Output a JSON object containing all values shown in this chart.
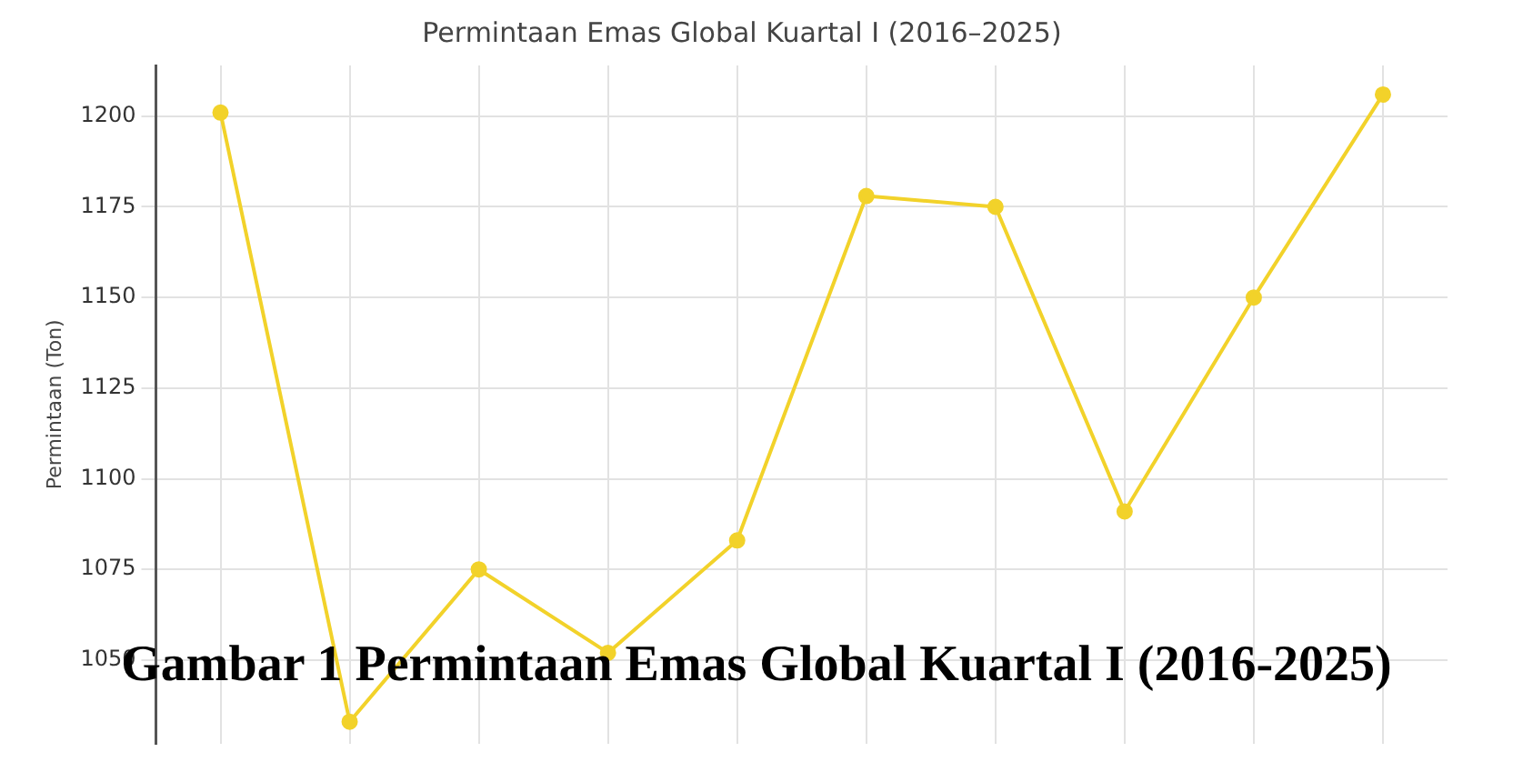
{
  "chart_data": {
    "type": "line",
    "title": "Permintaan Emas Global Kuartal I (2016–2025)",
    "ylabel": "Permintaan (Ton)",
    "categories": [
      null,
      null,
      null,
      null,
      null,
      null,
      null,
      null,
      null,
      null
    ],
    "series": [
      {
        "color": "#f2d22a",
        "values": [
          1201,
          1033,
          1075,
          1052,
          1083,
          1178,
          1175,
          1091,
          1150,
          1206
        ]
      }
    ],
    "ylim": [
      1027,
      1214
    ],
    "yticks": [
      1050,
      1075,
      1100,
      1125,
      1150,
      1175,
      1200
    ],
    "tick_labels": "y",
    "grid": true,
    "legend": false,
    "marker": "circle",
    "line_style": "solid",
    "annotations": [
      "Gambar 1 Permintaan Emas Global Kuartal I (2016-2025)"
    ]
  }
}
